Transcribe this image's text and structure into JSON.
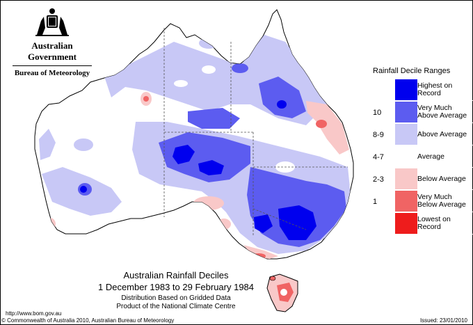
{
  "header": {
    "government": "Australian Government",
    "bureau": "Bureau of Meteorology"
  },
  "legend": {
    "title": "Rainfall Decile Ranges",
    "items": [
      {
        "code": "",
        "label": "Highest on Record",
        "color": "#0000ee"
      },
      {
        "code": "10",
        "label": "Very Much Above Average",
        "color": "#5c5cf0"
      },
      {
        "code": "8-9",
        "label": "Above Average",
        "color": "#c8c8f6"
      },
      {
        "code": "4-7",
        "label": "Average",
        "color": "#ffffff"
      },
      {
        "code": "2-3",
        "label": "Below Average",
        "color": "#f9c8c8"
      },
      {
        "code": "1",
        "label": "Very Much Below Average",
        "color": "#f06464"
      },
      {
        "code": "",
        "label": "Lowest on Record",
        "color": "#ee1c1c"
      }
    ]
  },
  "caption": {
    "title": "Australian Rainfall Deciles",
    "period": "1 December 1983 to 29 February 1984",
    "line3": "Distribution Based on Gridded Data",
    "line4": "Product of the National Climate Centre"
  },
  "footer": {
    "url": "http://www.bom.gov.au",
    "copyright": "© Commonwealth of Australia 2010, Australian Bureau of Meteorology",
    "issued": "Issued: 23/01/2010"
  }
}
